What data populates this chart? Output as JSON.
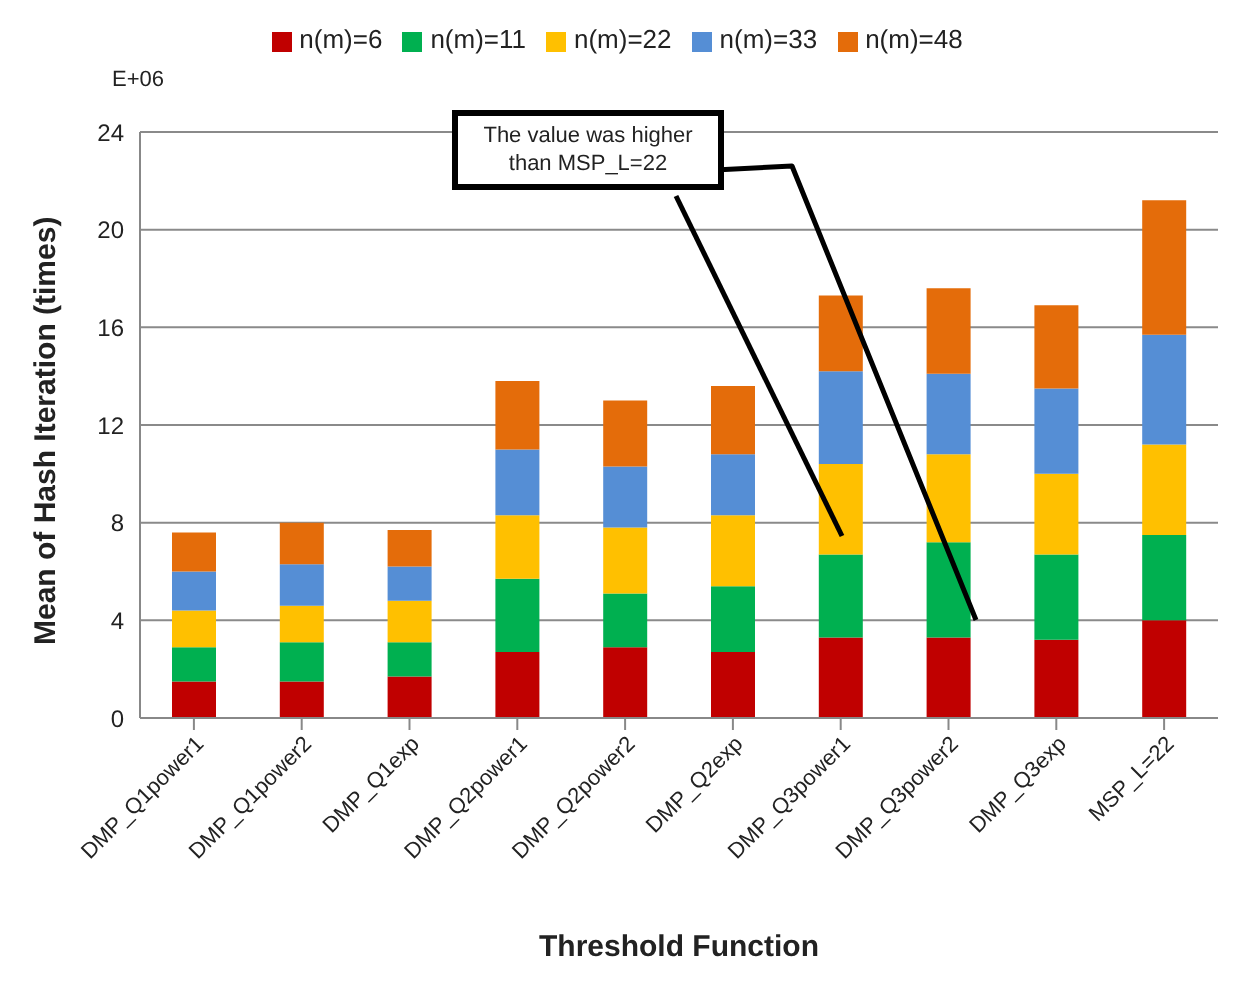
{
  "chart_data": {
    "type": "bar",
    "stacked": true,
    "xlabel": "Threshold Function",
    "ylabel": "Mean of Hash Iteration (times)",
    "categories": [
      "DMP_Q1power1",
      "DMP_Q1power2",
      "DMP_Q1exp",
      "DMP_Q2power1",
      "DMP_Q2power2",
      "DMP_Q2exp",
      "DMP_Q3power1",
      "DMP_Q3power2",
      "DMP_Q3exp",
      "MSP_L=22"
    ],
    "series": [
      {
        "name": "n(m)=6",
        "color": "#c00000",
        "values": [
          1.5,
          1.5,
          1.7,
          2.7,
          2.9,
          2.7,
          3.3,
          3.3,
          3.2,
          4.0
        ]
      },
      {
        "name": "n(m)=11",
        "color": "#00b050",
        "values": [
          1.4,
          1.6,
          1.4,
          3.0,
          2.2,
          2.7,
          3.4,
          3.9,
          3.5,
          3.5
        ]
      },
      {
        "name": "n(m)=22",
        "color": "#ffc000",
        "values": [
          1.5,
          1.5,
          1.7,
          2.6,
          2.7,
          2.9,
          3.7,
          3.6,
          3.3,
          3.7
        ]
      },
      {
        "name": "n(m)=33",
        "color": "#558ed5",
        "values": [
          1.6,
          1.7,
          1.4,
          2.7,
          2.5,
          2.5,
          3.8,
          3.3,
          3.5,
          4.5
        ]
      },
      {
        "name": "n(m)=48",
        "color": "#e46c0a",
        "values": [
          1.6,
          1.7,
          1.5,
          2.8,
          2.7,
          2.8,
          3.1,
          3.5,
          3.4,
          5.5
        ]
      }
    ],
    "ylim": [
      0,
      24
    ],
    "yticks": [
      0,
      4,
      8,
      12,
      16,
      20,
      24
    ],
    "grid": "y",
    "legend": "top",
    "annotations": [
      "E+06",
      "The value was higher than MSP_L=22"
    ]
  }
}
